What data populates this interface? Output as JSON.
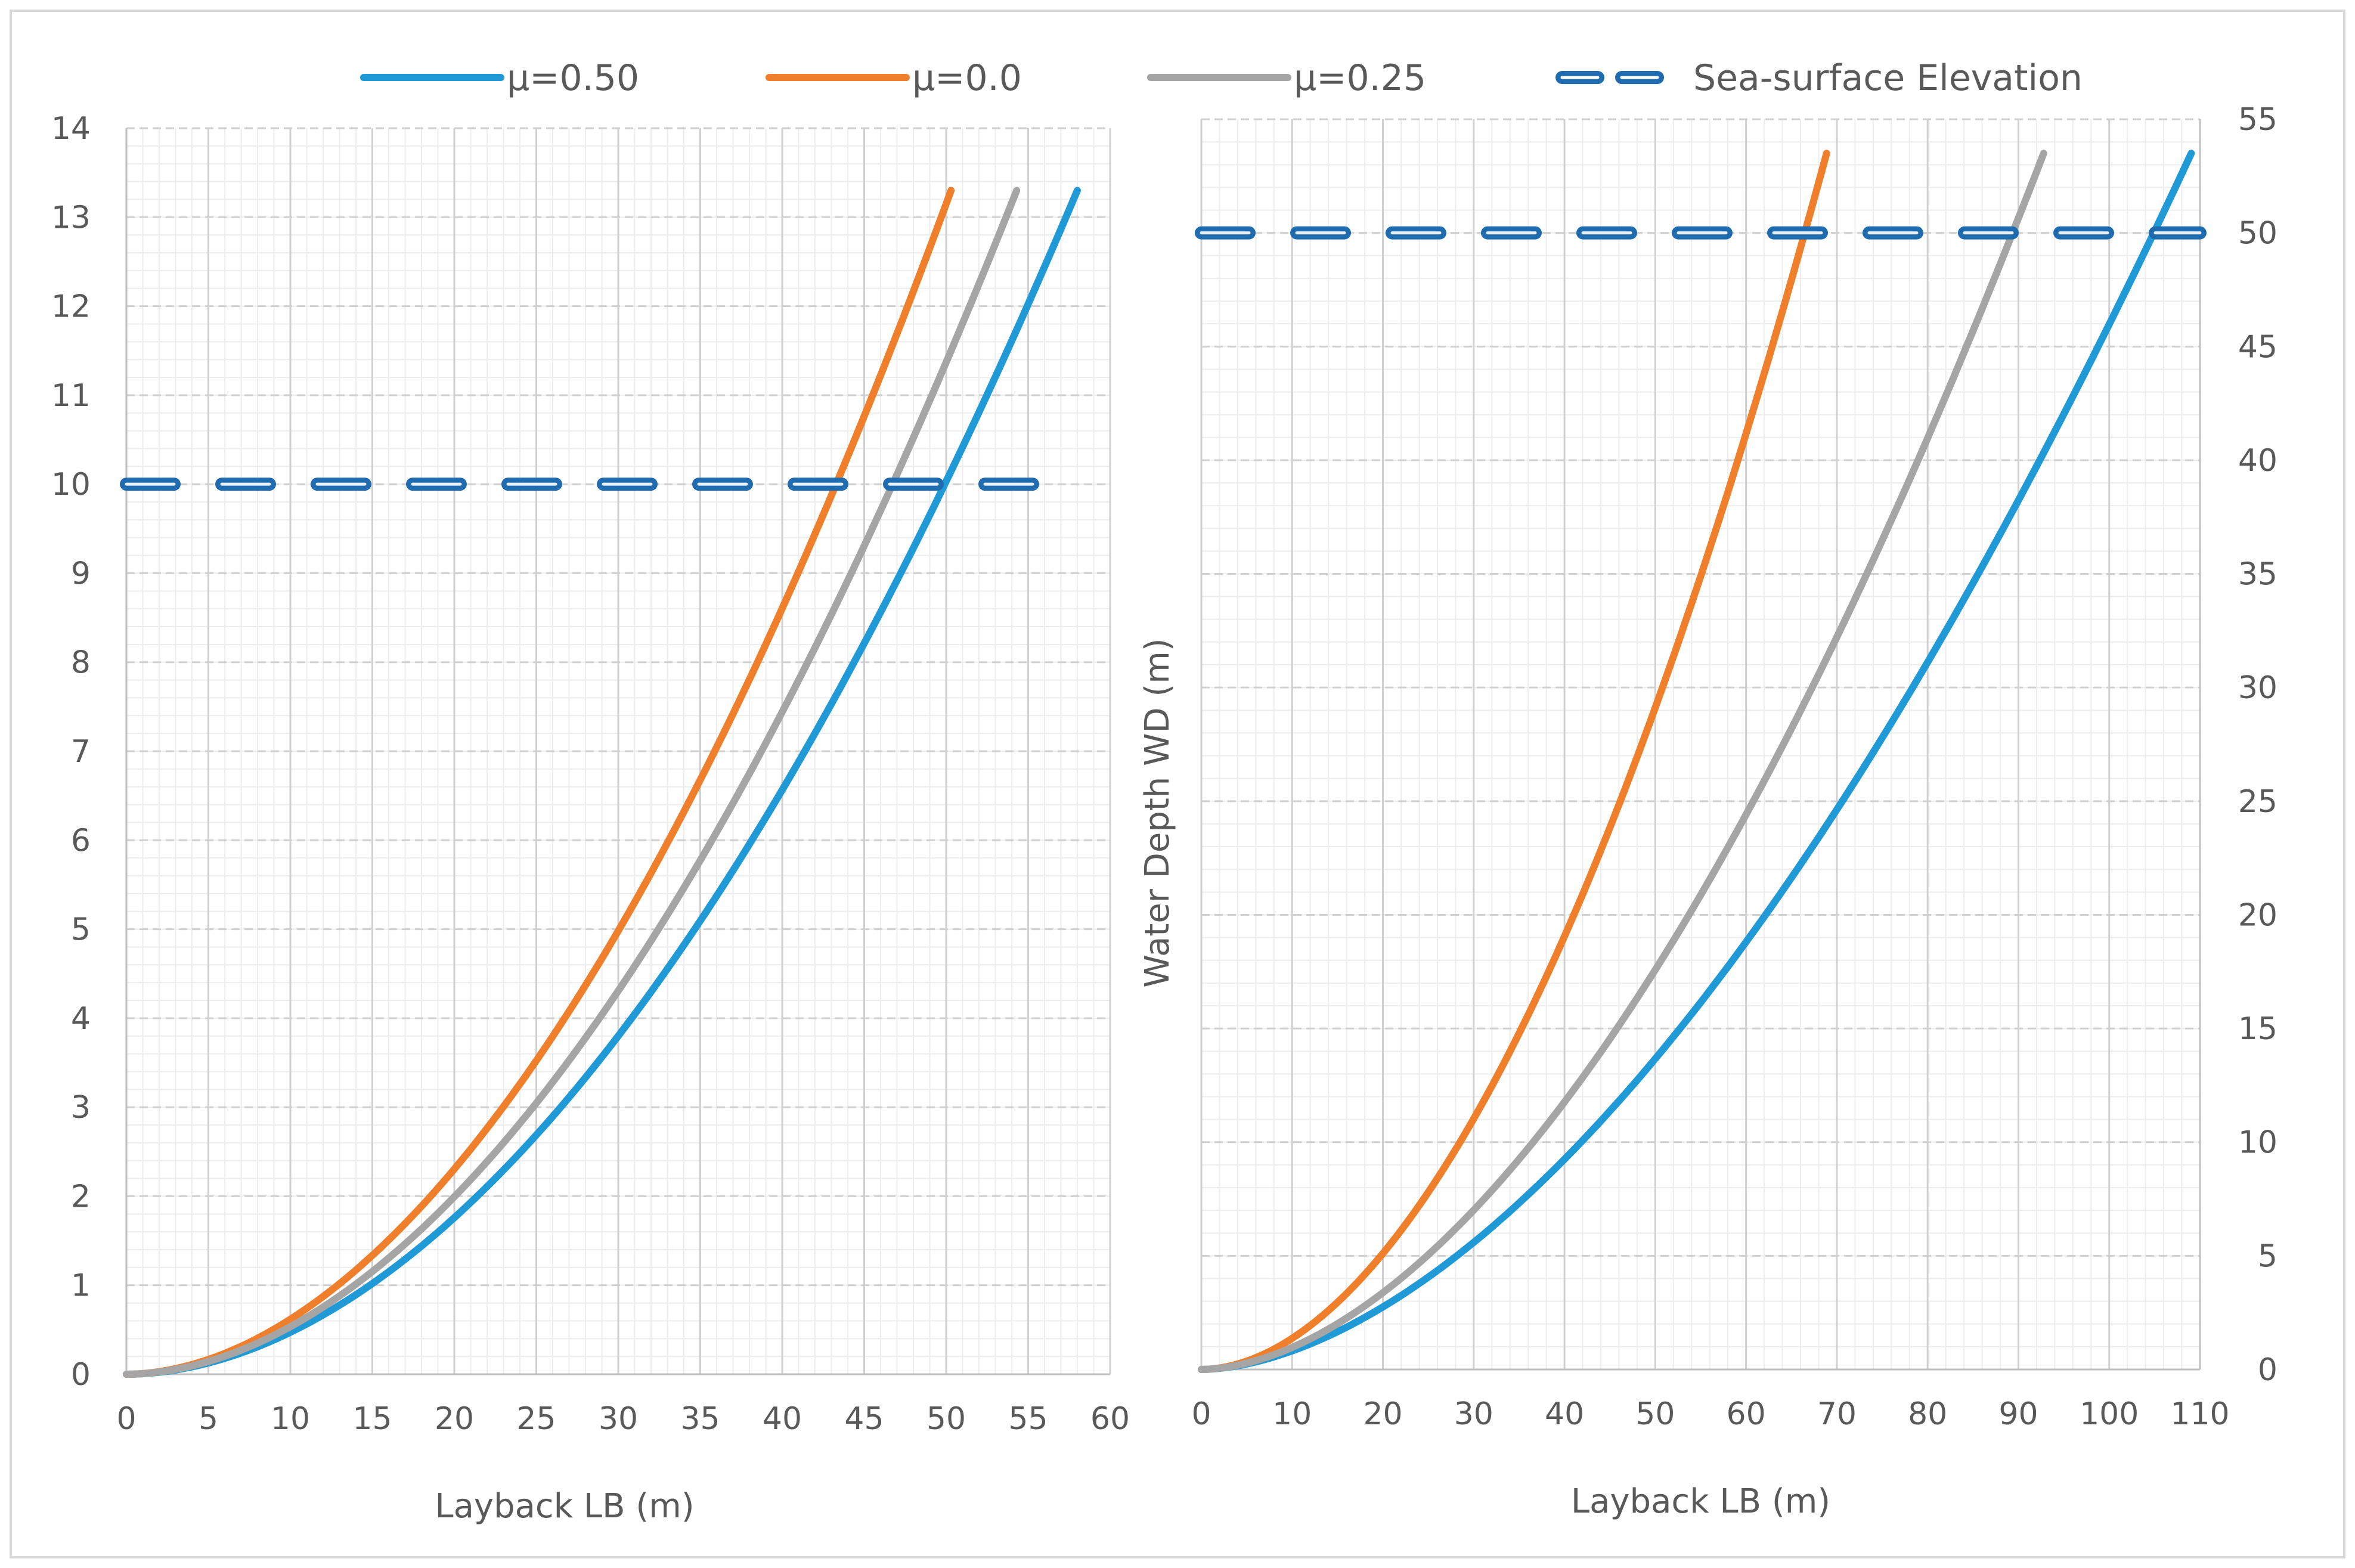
{
  "chart_data": [
    {
      "type": "line",
      "panel": "left",
      "xlabel": "Layback LB (m)",
      "ylabel": "",
      "xlim": [
        0,
        60
      ],
      "ylim": [
        0,
        14
      ],
      "x_ticks": [
        "0",
        "5",
        "10",
        "15",
        "20",
        "25",
        "30",
        "35",
        "40",
        "45",
        "50",
        "55",
        "60"
      ],
      "y_ticks": [
        "0",
        "1",
        "2",
        "3",
        "4",
        "5",
        "6",
        "7",
        "8",
        "9",
        "10",
        "11",
        "12",
        "13",
        "14"
      ],
      "y_axis_side": "left",
      "grid": true,
      "series": [
        {
          "name": "μ=0.50",
          "color": "#1F9AD6",
          "style": "solid",
          "x_end": 58.0,
          "y_end": 13.3,
          "exponent": 1.9
        },
        {
          "name": "μ=0.0",
          "color": "#F07F2C",
          "style": "solid",
          "x_end": 50.3,
          "y_end": 13.3,
          "exponent": 1.9
        },
        {
          "name": "μ=0.25",
          "color": "#A5A5A5",
          "style": "solid",
          "x_end": 54.3,
          "y_end": 13.3,
          "exponent": 1.9
        },
        {
          "name": "Sea-surface Elevation",
          "color": "#1F6BAF",
          "style": "dashed",
          "x": [
            0,
            55.5
          ],
          "y": [
            10,
            10
          ]
        }
      ]
    },
    {
      "type": "line",
      "panel": "right",
      "xlabel": "Layback LB (m)",
      "ylabel": "Water Depth WD (m)",
      "xlim": [
        0,
        115
      ],
      "ylim": [
        0,
        55
      ],
      "x_ticks": [
        "0",
        "10",
        "20",
        "30",
        "40",
        "50",
        "60",
        "70",
        "80",
        "90",
        "100",
        "110"
      ],
      "y_ticks": [
        "0",
        "5",
        "10",
        "15",
        "20",
        "25",
        "30",
        "35",
        "40",
        "45",
        "50",
        "55"
      ],
      "y_axis_side": "right",
      "grid": true,
      "series": [
        {
          "name": "μ=0.50",
          "color": "#1F9AD6",
          "style": "solid",
          "x_end": 114.0,
          "y_end": 53.5,
          "exponent": 1.75
        },
        {
          "name": "μ=0.0",
          "color": "#F07F2C",
          "style": "solid",
          "x_end": 72.0,
          "y_end": 53.5,
          "exponent": 1.9
        },
        {
          "name": "μ=0.25",
          "color": "#A5A5A5",
          "style": "solid",
          "x_end": 97.0,
          "y_end": 53.5,
          "exponent": 1.8
        },
        {
          "name": "Sea-surface Elevation",
          "color": "#1F6BAF",
          "style": "dashed",
          "x": [
            0,
            115
          ],
          "y": [
            50,
            50
          ]
        }
      ]
    }
  ],
  "legend": {
    "placement": "top",
    "entries": [
      {
        "label": "μ=0.50",
        "color": "#1F9AD6",
        "style": "solid"
      },
      {
        "label": "μ=0.0",
        "color": "#F07F2C",
        "style": "solid"
      },
      {
        "label": "μ=0.25",
        "color": "#A5A5A5",
        "style": "solid"
      },
      {
        "label": "Sea-surface Elevation",
        "color": "#1F6BAF",
        "style": "dashed"
      }
    ]
  }
}
